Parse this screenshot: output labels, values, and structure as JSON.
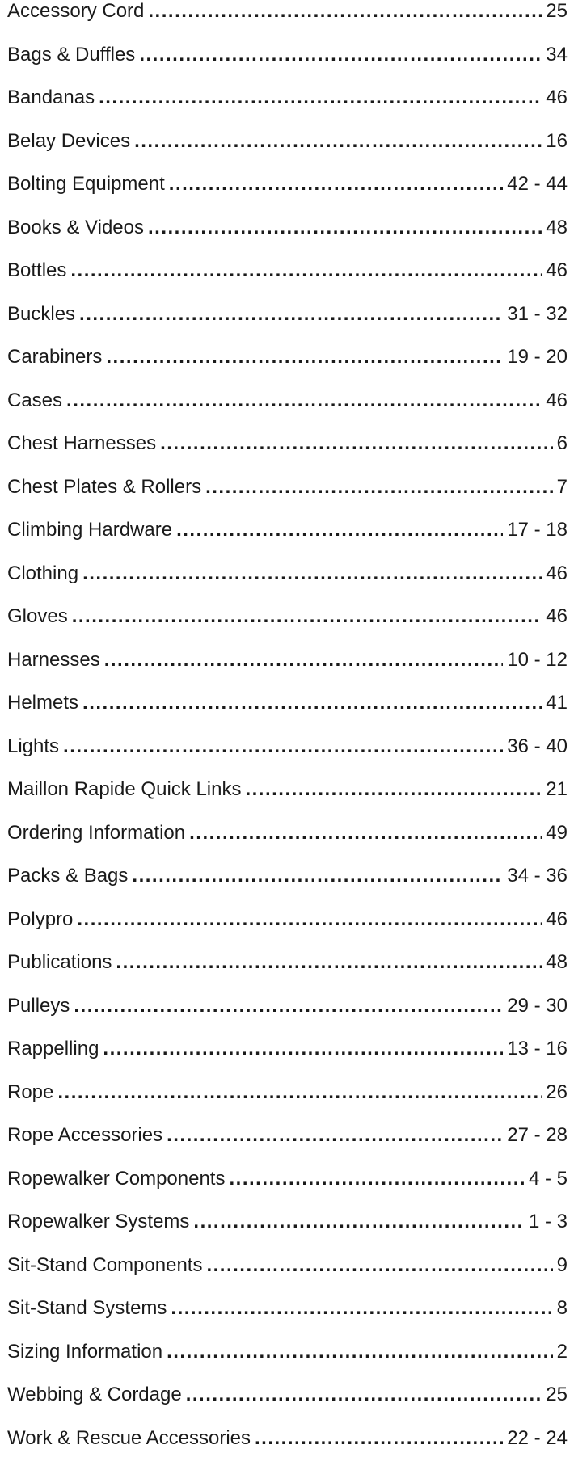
{
  "entries": [
    {
      "label": "Accessory Cord",
      "page": "25"
    },
    {
      "label": "Bags & Duffles",
      "page": "34"
    },
    {
      "label": "Bandanas",
      "page": "46"
    },
    {
      "label": "Belay Devices",
      "page": "16"
    },
    {
      "label": "Bolting Equipment",
      "page": "42 - 44"
    },
    {
      "label": "Books & Videos",
      "page": "48"
    },
    {
      "label": "Bottles",
      "page": "46"
    },
    {
      "label": "Buckles",
      "page": "31 - 32"
    },
    {
      "label": "Carabiners",
      "page": "19 - 20"
    },
    {
      "label": "Cases",
      "page": "46"
    },
    {
      "label": "Chest Harnesses",
      "page": "6"
    },
    {
      "label": "Chest Plates & Rollers",
      "page": "7"
    },
    {
      "label": "Climbing Hardware",
      "page": "17 - 18"
    },
    {
      "label": "Clothing",
      "page": "46"
    },
    {
      "label": "Gloves",
      "page": "46"
    },
    {
      "label": "Harnesses",
      "page": "10 - 12"
    },
    {
      "label": "Helmets",
      "page": "41"
    },
    {
      "label": "Lights",
      "page": "36 - 40"
    },
    {
      "label": "Maillon Rapide Quick Links",
      "page": "21"
    },
    {
      "label": "Ordering Information",
      "page": "49"
    },
    {
      "label": "Packs & Bags",
      "page": "34 - 36"
    },
    {
      "label": "Polypro",
      "page": "46"
    },
    {
      "label": "Publications",
      "page": "48"
    },
    {
      "label": "Pulleys",
      "page": "29 - 30"
    },
    {
      "label": "Rappelling",
      "page": "13 - 16"
    },
    {
      "label": "Rope",
      "page": "26"
    },
    {
      "label": "Rope Accessories",
      "page": "27 - 28"
    },
    {
      "label": "Ropewalker Components",
      "page": "4 - 5"
    },
    {
      "label": "Ropewalker Systems",
      "page": "1 - 3"
    },
    {
      "label": "Sit-Stand Components",
      "page": "9"
    },
    {
      "label": "Sit-Stand Systems",
      "page": "8"
    },
    {
      "label": "Sizing Information",
      "page": "2"
    },
    {
      "label": "Webbing & Cordage",
      "page": "25"
    },
    {
      "label": "Work & Rescue Accessories",
      "page": "22 - 24"
    }
  ]
}
